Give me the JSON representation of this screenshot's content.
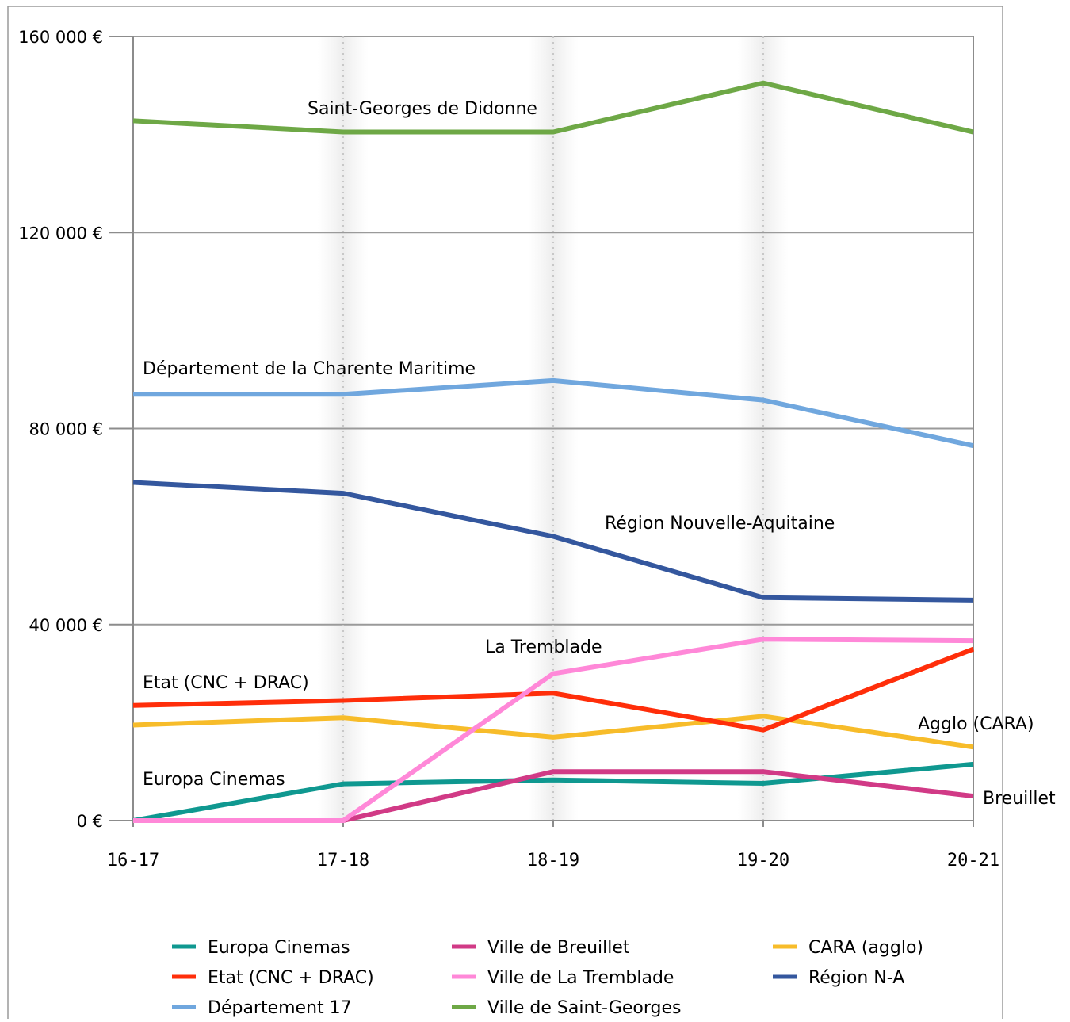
{
  "chart_data": {
    "type": "line",
    "title": "",
    "xlabel": "",
    "ylabel": "",
    "categories": [
      "16-17",
      "17-18",
      "18-19",
      "19-20",
      "20-21"
    ],
    "ylim": [
      0,
      160000
    ],
    "yticks": [
      0,
      40000,
      80000,
      120000,
      160000
    ],
    "ytick_labels": [
      "0 €",
      "40 000 €",
      "80 000 €",
      "120 000 €",
      "160 000 €"
    ],
    "grid": "horizontal",
    "legend_position": "bottom",
    "series": [
      {
        "name": "Europa Cinemas",
        "color": "#0f9890",
        "values": [
          0,
          7500,
          8300,
          7600,
          11500
        ]
      },
      {
        "name": "Ville de Breuillet",
        "color": "#d13a86",
        "values": [
          0,
          0,
          10000,
          10000,
          5000
        ]
      },
      {
        "name": "CARA (agglo)",
        "color": "#f7bc2a",
        "values": [
          19500,
          21000,
          17000,
          21300,
          15000
        ]
      },
      {
        "name": "Etat (CNC + DRAC)",
        "color": "#ff2e0a",
        "values": [
          23500,
          24500,
          26000,
          18500,
          35000
        ]
      },
      {
        "name": "Ville de La Tremblade",
        "color": "#ff88d8",
        "values": [
          0,
          0,
          30000,
          37000,
          36700
        ]
      },
      {
        "name": "Région N-A",
        "color": "#34579e",
        "values": [
          69000,
          66800,
          58000,
          45500,
          45000
        ]
      },
      {
        "name": "Département 17",
        "color": "#70a7de",
        "values": [
          87000,
          87000,
          89800,
          85800,
          76500
        ]
      },
      {
        "name": "Ville de Saint-Georges",
        "color": "#6ea846",
        "values": [
          142800,
          140500,
          140500,
          150500,
          140500
        ]
      }
    ],
    "annotations": [
      {
        "text": "Saint-Georges de Didonne"
      },
      {
        "text": "Département de la Charente Maritime"
      },
      {
        "text": "Région Nouvelle-Aquitaine"
      },
      {
        "text": "La Tremblade"
      },
      {
        "text": "Etat (CNC + DRAC)"
      },
      {
        "text": "Agglo (CARA)"
      },
      {
        "text": "Europa Cinemas"
      },
      {
        "text": "Breuillet"
      }
    ]
  }
}
